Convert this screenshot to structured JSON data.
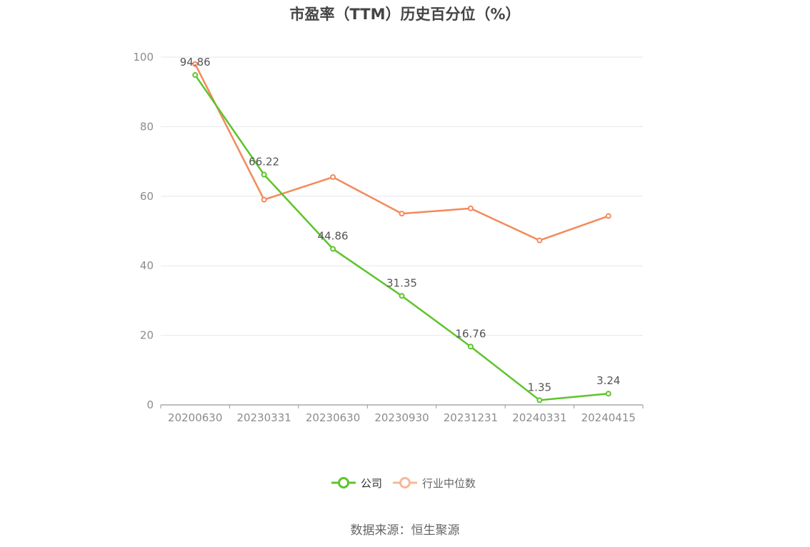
{
  "title": "市盈率（TTM）历史百分位（%）",
  "source": "数据来源：恒生聚源",
  "colors": {
    "company": "#5ec42c",
    "industry": "#f28a5a",
    "industry_legend": "#f7b79a",
    "grid": "#e6e6ef",
    "axis": "#999999"
  },
  "chart_data": {
    "type": "line",
    "title": "市盈率（TTM）历史百分位（%）",
    "categories": [
      "20200630",
      "20230331",
      "20230630",
      "20230930",
      "20231231",
      "20240331",
      "20240415"
    ],
    "yticks": [
      0,
      20,
      40,
      60,
      80,
      100
    ],
    "ylim": [
      0,
      100
    ],
    "grid": true,
    "legend_position": "bottom-center",
    "series": [
      {
        "name": "公司",
        "values": [
          94.86,
          66.22,
          44.86,
          31.35,
          16.76,
          1.35,
          3.24
        ],
        "labels": [
          "94.86",
          "66.22",
          "44.86",
          "31.35",
          "16.76",
          "1.35",
          "3.24"
        ]
      },
      {
        "name": "行业中位数",
        "values": [
          98.0,
          59.0,
          65.5,
          55.0,
          56.5,
          47.3,
          54.3
        ]
      }
    ]
  }
}
